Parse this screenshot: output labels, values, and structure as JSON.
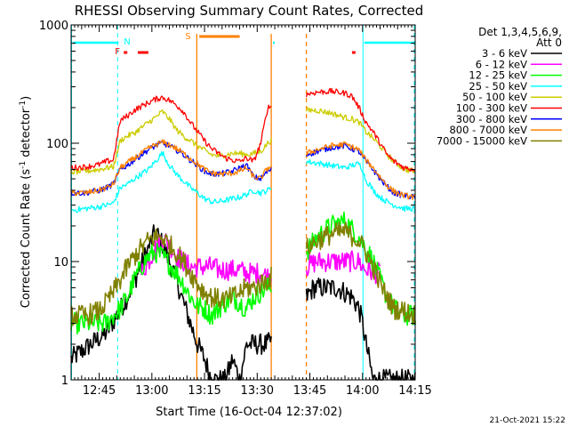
{
  "chart_data": {
    "type": "line",
    "title": "RHESSI Observing Summary Count Rates, Corrected",
    "xlabel": "Start Time (16-Oct-04 12:37:02)",
    "ylabel_main": "Corrected Count Rate (s",
    "ylabel_sup1": "-1",
    "ylabel_mid": " detector",
    "ylabel_sup2": "-1",
    "ylabel_end": ")",
    "yscale": "log",
    "xlim_minutes": [
      0,
      98
    ],
    "ylim": [
      1,
      1000
    ],
    "x_ticks": [
      {
        "label": "12:45",
        "min": 8
      },
      {
        "label": "13:00",
        "min": 23
      },
      {
        "label": "13:15",
        "min": 38
      },
      {
        "label": "13:30",
        "min": 53
      },
      {
        "label": "13:45",
        "min": 68
      },
      {
        "label": "14:00",
        "min": 83
      },
      {
        "label": "14:15",
        "min": 98
      }
    ],
    "y_ticks": [
      {
        "label": "1",
        "value": 1
      },
      {
        "label": "10",
        "value": 10
      },
      {
        "label": "100",
        "value": 100
      },
      {
        "label": "1000",
        "value": 1000
      }
    ],
    "legend_header": [
      "Det 1,3,4,5,6,9,",
      "Att 0"
    ],
    "gap_minutes": [
      57,
      67
    ],
    "series": [
      {
        "name": "3 - 6 keV",
        "color": "#000000",
        "x": [
          0,
          10,
          13,
          16,
          19,
          22,
          24,
          26,
          28,
          30,
          32,
          34,
          36,
          38,
          40,
          42,
          44,
          46,
          48,
          50,
          52,
          54,
          56,
          67,
          69,
          72,
          76,
          80,
          82,
          83,
          84,
          86,
          88,
          90,
          93,
          95,
          98
        ],
        "y": [
          1.5,
          2.5,
          3.5,
          5,
          8,
          13,
          18,
          14,
          10,
          7,
          4.5,
          3,
          2,
          1.5,
          1,
          1,
          1,
          1.5,
          1,
          2,
          2,
          2,
          2,
          5,
          6,
          6,
          6,
          5,
          4,
          3,
          2,
          1,
          1,
          1,
          1,
          1,
          1
        ]
      },
      {
        "name": "6 - 12 keV",
        "color": "#ff00ff",
        "x": [
          20,
          22,
          24,
          26,
          28,
          30,
          32,
          34,
          36,
          38,
          40,
          42,
          44,
          46,
          48,
          50,
          52,
          54,
          56,
          67,
          70,
          74,
          78,
          80,
          82,
          83,
          84,
          85,
          86,
          88
        ],
        "y": [
          8,
          10,
          13,
          16,
          14,
          11,
          10,
          9,
          9,
          9,
          9,
          8.5,
          8.5,
          8.5,
          8.5,
          8,
          8,
          8,
          7.5,
          9,
          10,
          10,
          10,
          10,
          10,
          9,
          8.5,
          8.5,
          8,
          8
        ]
      },
      {
        "name": "12 - 25 keV",
        "color": "#00ff00",
        "x": [
          0,
          4,
          8,
          10,
          12,
          14,
          16,
          18,
          20,
          22,
          24,
          26,
          28,
          30,
          32,
          34,
          36,
          38,
          40,
          42,
          44,
          46,
          48,
          50,
          52,
          54,
          56,
          67,
          70,
          74,
          78,
          82,
          84,
          86,
          88,
          90,
          92,
          95,
          98
        ],
        "y": [
          3,
          3,
          3,
          3,
          3.5,
          4,
          5,
          7,
          9,
          11,
          12,
          11,
          9.5,
          8,
          6.5,
          5,
          4.2,
          4,
          3.5,
          4,
          4.5,
          5,
          4.5,
          4,
          5,
          5.5,
          6,
          12,
          16,
          20,
          22,
          16,
          13,
          10,
          7,
          5,
          4,
          3.5,
          3.5
        ]
      },
      {
        "name": "25 - 50 keV",
        "color": "#00ffff",
        "x": [
          0,
          4,
          8,
          10,
          12,
          14,
          16,
          18,
          20,
          22,
          24,
          26,
          28,
          30,
          32,
          34,
          36,
          38,
          40,
          42,
          44,
          46,
          48,
          50,
          52,
          54,
          56,
          67,
          70,
          74,
          78,
          80,
          82,
          83,
          84,
          85,
          86,
          88,
          90,
          92,
          95,
          98
        ],
        "y": [
          27,
          28,
          29,
          30,
          31,
          42,
          45,
          50,
          55,
          60,
          70,
          83,
          65,
          55,
          48,
          42,
          38,
          34,
          32,
          32,
          33,
          34,
          35,
          37,
          40,
          38,
          40,
          70,
          68,
          65,
          62,
          65,
          67,
          60,
          48,
          45,
          40,
          35,
          32,
          30,
          28,
          28
        ]
      },
      {
        "name": "50 - 100 keV",
        "color": "#cccc00",
        "x": [
          0,
          4,
          8,
          10,
          12,
          14,
          16,
          18,
          20,
          22,
          24,
          26,
          28,
          30,
          32,
          34,
          36,
          38,
          40,
          42,
          44,
          46,
          48,
          50,
          52,
          54,
          56,
          67,
          70,
          74,
          78,
          80,
          82,
          84,
          86,
          88,
          90,
          92,
          95,
          98
        ],
        "y": [
          57,
          58,
          60,
          62,
          63,
          105,
          115,
          122,
          135,
          150,
          165,
          185,
          160,
          130,
          115,
          105,
          95,
          87,
          80,
          78,
          80,
          82,
          82,
          80,
          82,
          85,
          100,
          190,
          190,
          180,
          165,
          160,
          150,
          125,
          110,
          95,
          80,
          70,
          60,
          58
        ]
      },
      {
        "name": "100 - 300 keV",
        "color": "#ff0000",
        "x": [
          0,
          4,
          8,
          10,
          12,
          14,
          16,
          18,
          20,
          22,
          24,
          26,
          28,
          30,
          32,
          34,
          36,
          38,
          40,
          42,
          44,
          46,
          48,
          50,
          52,
          54,
          56,
          67,
          70,
          74,
          78,
          80,
          82,
          84,
          86,
          88,
          90,
          92,
          95,
          98
        ],
        "y": [
          62,
          63,
          66,
          70,
          72,
          155,
          170,
          190,
          205,
          220,
          235,
          245,
          230,
          210,
          185,
          150,
          125,
          105,
          90,
          82,
          75,
          72,
          70,
          75,
          70,
          100,
          200,
          260,
          270,
          275,
          265,
          250,
          200,
          150,
          125,
          100,
          80,
          70,
          62,
          60
        ]
      },
      {
        "name": "300 - 800 keV",
        "color": "#0000ff",
        "x": [
          0,
          4,
          8,
          10,
          12,
          14,
          16,
          18,
          20,
          22,
          24,
          26,
          28,
          30,
          32,
          34,
          36,
          38,
          40,
          42,
          44,
          46,
          48,
          50,
          52,
          54,
          56,
          67,
          70,
          74,
          78,
          80,
          82,
          84,
          86,
          88,
          90,
          92,
          95,
          98
        ],
        "y": [
          38,
          38,
          40,
          42,
          45,
          60,
          65,
          72,
          80,
          88,
          95,
          100,
          95,
          88,
          80,
          72,
          65,
          58,
          55,
          55,
          56,
          58,
          62,
          65,
          52,
          50,
          58,
          80,
          85,
          92,
          95,
          90,
          85,
          70,
          60,
          50,
          43,
          38,
          36,
          35
        ]
      },
      {
        "name": "800 - 7000 keV",
        "color": "#ff8000",
        "x": [
          0,
          4,
          8,
          10,
          12,
          14,
          16,
          18,
          20,
          22,
          24,
          26,
          28,
          30,
          32,
          34,
          36,
          38,
          40,
          42,
          44,
          46,
          48,
          50,
          52,
          54,
          56,
          67,
          70,
          74,
          78,
          80,
          82,
          84,
          86,
          88,
          90,
          92,
          95,
          98
        ],
        "y": [
          38,
          38,
          40,
          42,
          45,
          62,
          68,
          75,
          82,
          90,
          97,
          102,
          97,
          90,
          82,
          74,
          67,
          60,
          56,
          55,
          55,
          56,
          58,
          62,
          52,
          50,
          62,
          82,
          88,
          95,
          98,
          93,
          88,
          72,
          62,
          52,
          44,
          39,
          36,
          35
        ]
      },
      {
        "name": "7000 - 15000 keV",
        "color": "#808000",
        "x": [
          0,
          4,
          8,
          10,
          12,
          14,
          16,
          18,
          20,
          22,
          24,
          26,
          28,
          30,
          32,
          34,
          36,
          38,
          40,
          42,
          44,
          46,
          48,
          50,
          52,
          54,
          56,
          67,
          70,
          74,
          78,
          82,
          84,
          86,
          88,
          90,
          92,
          95,
          98
        ],
        "y": [
          3.5,
          3.5,
          3.8,
          4.5,
          5.5,
          7,
          9,
          11,
          13,
          15,
          16,
          16,
          14,
          12,
          10,
          8,
          6.5,
          5.5,
          5,
          4.8,
          4.8,
          5,
          5.5,
          6,
          6,
          6.5,
          7,
          13,
          15,
          17,
          18,
          15,
          12,
          9,
          6.5,
          5,
          4,
          3.8,
          3.5
        ]
      }
    ],
    "annotations": {
      "att_state_bar": {
        "color": "#00ffff",
        "label": "N",
        "segments": [
          [
            0,
            13.5
          ],
          [
            57,
            58
          ],
          [
            83,
            98
          ]
        ]
      },
      "flare_bar": {
        "color": "#ff0000",
        "label": "F",
        "segments": [
          [
            15,
            16
          ],
          [
            19,
            22
          ],
          [
            80,
            81
          ]
        ]
      },
      "saa_bar": {
        "color": "#ff8000",
        "label": "S",
        "segments": [
          [
            36,
            48
          ]
        ]
      },
      "cyan_vlines_dashed": [
        13.5,
        98
      ],
      "cyan_vlines_solid": [
        0,
        83
      ],
      "orange_vlines_solid": [
        35.8,
        57
      ],
      "orange_vlines_dashed": [
        67
      ]
    }
  },
  "footer": {
    "date": "21-Oct-2021 15:22"
  }
}
